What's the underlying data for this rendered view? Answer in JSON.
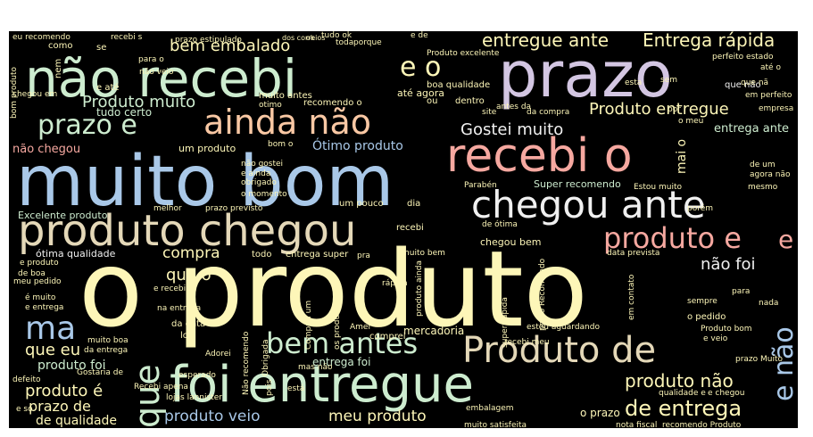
{
  "palette": {
    "background": "#000000",
    "cream": "#fdf6b8",
    "mint": "#cdeccf",
    "blue": "#a9c8e8",
    "peach": "#f9c8a4",
    "salmon": "#f6a8a0",
    "lavender": "#d3c6e2",
    "tan": "#e4d8b8",
    "grey": "#f0f0f0"
  },
  "words": [
    {
      "text": "o produto",
      "color": "cream"
    },
    {
      "text": "muito bom",
      "color": "blue"
    },
    {
      "text": "não recebi",
      "color": "mint"
    },
    {
      "text": "prazo",
      "color": "lavender"
    },
    {
      "text": "foi entregue",
      "color": "mint"
    },
    {
      "text": "produto chegou",
      "color": "tan"
    },
    {
      "text": "recebi o",
      "color": "salmon"
    },
    {
      "text": "chegou ante",
      "color": "grey"
    },
    {
      "text": "ainda não",
      "color": "peach"
    },
    {
      "text": "Produto de",
      "color": "tan"
    },
    {
      "text": "prazo e",
      "color": "mint"
    },
    {
      "text": "bem antes",
      "color": "mint"
    },
    {
      "text": "produto e",
      "color": "salmon"
    },
    {
      "text": "ma",
      "color": "blue"
    },
    {
      "text": "que",
      "color": "mint"
    },
    {
      "text": "e não",
      "color": "blue"
    },
    {
      "text": "e",
      "color": "salmon"
    },
    {
      "text": "e o",
      "color": "cream"
    },
    {
      "text": "de entrega",
      "color": "cream"
    },
    {
      "text": "entregue ante",
      "color": "cream"
    },
    {
      "text": "Entrega rápida",
      "color": "cream"
    },
    {
      "text": "bem embalado",
      "color": "cream"
    },
    {
      "text": "Produto entregue",
      "color": "cream"
    },
    {
      "text": "Produto muito",
      "color": "mint"
    },
    {
      "text": "Gostei muito",
      "color": "grey"
    },
    {
      "text": "produto não",
      "color": "cream"
    },
    {
      "text": "produto é",
      "color": "cream"
    },
    {
      "text": "produto veio",
      "color": "blue"
    },
    {
      "text": "meu produto",
      "color": "cream"
    },
    {
      "text": "compra",
      "color": "cream"
    },
    {
      "text": "que o",
      "color": "cream"
    },
    {
      "text": "não foi",
      "color": "grey"
    },
    {
      "text": "que eu",
      "color": "cream"
    },
    {
      "text": "prazo de",
      "color": "cream"
    },
    {
      "text": "de qualidade",
      "color": "cream"
    },
    {
      "text": "produto foi",
      "color": "mint"
    },
    {
      "text": "Ótimo produto",
      "color": "blue"
    },
    {
      "text": "entrega ante",
      "color": "mint"
    },
    {
      "text": "Excelente produto",
      "color": "mint"
    },
    {
      "text": "ótima qualidade",
      "color": "grey"
    },
    {
      "text": "o prazo",
      "color": "cream"
    },
    {
      "text": "entrega foi",
      "color": "mint"
    },
    {
      "text": "mercadoria",
      "color": "cream"
    },
    {
      "text": "tudo certo",
      "color": "mint"
    },
    {
      "text": "chegou bem",
      "color": "cream"
    },
    {
      "text": "Super recomendo",
      "color": "mint"
    },
    {
      "text": "mai o",
      "color": "cream"
    },
    {
      "text": "até agora",
      "color": "cream"
    },
    {
      "text": "não chegou",
      "color": "salmon"
    },
    {
      "text": "boa qualidade",
      "color": "cream"
    },
    {
      "text": "Estou muito",
      "color": "cream"
    },
    {
      "text": "que não",
      "color": "grey"
    },
    {
      "text": "porém",
      "color": "cream"
    },
    {
      "text": "mesmo",
      "color": "cream"
    },
    {
      "text": "o pedido",
      "color": "cream"
    },
    {
      "text": "sempre",
      "color": "cream"
    },
    {
      "text": "data prevista",
      "color": "cream"
    },
    {
      "text": "Parabén",
      "color": "cream"
    },
    {
      "text": "antes da",
      "color": "cream"
    },
    {
      "text": "dentro",
      "color": "cream"
    },
    {
      "text": "ou",
      "color": "cream"
    },
    {
      "text": "um produto",
      "color": "cream"
    },
    {
      "text": "não gostei",
      "color": "cream"
    },
    {
      "text": "obrigado",
      "color": "cream"
    },
    {
      "text": "o momento",
      "color": "cream"
    },
    {
      "text": "prazo previsto",
      "color": "cream"
    },
    {
      "text": "um pouco",
      "color": "cream"
    },
    {
      "text": "dia",
      "color": "cream"
    },
    {
      "text": "melhor",
      "color": "cream"
    },
    {
      "text": "todo",
      "color": "cream"
    },
    {
      "text": "entrega super",
      "color": "cream"
    },
    {
      "text": "muito bem",
      "color": "cream"
    },
    {
      "text": "pra",
      "color": "cream"
    },
    {
      "text": "de ótima",
      "color": "cream"
    },
    {
      "text": "de boa",
      "color": "cream"
    },
    {
      "text": "meu pedido",
      "color": "cream"
    },
    {
      "text": "é muito",
      "color": "cream"
    },
    {
      "text": "e entrega",
      "color": "cream"
    },
    {
      "text": "e recebi",
      "color": "cream"
    },
    {
      "text": "na entrega",
      "color": "cream"
    },
    {
      "text": "da data",
      "color": "cream"
    },
    {
      "text": "loja",
      "color": "cream"
    },
    {
      "text": "muito boa",
      "color": "cream"
    },
    {
      "text": "da entrega",
      "color": "cream"
    },
    {
      "text": "Adorei",
      "color": "cream"
    },
    {
      "text": "Gostaria de",
      "color": "cream"
    },
    {
      "text": "estou aguardando",
      "color": "cream"
    },
    {
      "text": "recebi meu",
      "color": "cream"
    },
    {
      "text": "Produto bom",
      "color": "cream"
    },
    {
      "text": "e veio",
      "color": "cream"
    },
    {
      "text": "e chegou",
      "color": "cream"
    },
    {
      "text": "qualidade e",
      "color": "cream"
    },
    {
      "text": "nota fiscal",
      "color": "cream"
    },
    {
      "text": "recomendo Produto",
      "color": "cream"
    },
    {
      "text": "muito satisfeita",
      "color": "cream"
    },
    {
      "text": "embalagem",
      "color": "cream"
    },
    {
      "text": "para",
      "color": "cream"
    },
    {
      "text": "nada",
      "color": "cream"
    },
    {
      "text": "bom o",
      "color": "cream"
    },
    {
      "text": "e ainda",
      "color": "cream"
    },
    {
      "text": "site",
      "color": "cream"
    },
    {
      "text": "da compra",
      "color": "cream"
    },
    {
      "text": "recomendo o",
      "color": "cream"
    },
    {
      "text": "otimo",
      "color": "cream"
    },
    {
      "text": "muito antes",
      "color": "cream"
    },
    {
      "text": "chegou em",
      "color": "cream"
    },
    {
      "text": "e até",
      "color": "cream"
    },
    {
      "text": "não veio",
      "color": "cream"
    },
    {
      "text": "para o",
      "color": "cream"
    },
    {
      "text": "como",
      "color": "cream"
    },
    {
      "text": "se",
      "color": "cream"
    },
    {
      "text": "eu recomendo",
      "color": "cream"
    },
    {
      "text": "recebi s",
      "color": "cream"
    },
    {
      "text": "prazo estipulado",
      "color": "cream"
    },
    {
      "text": "tudo ok",
      "color": "cream"
    },
    {
      "text": "e de",
      "color": "cream"
    },
    {
      "text": "Produto excelente",
      "color": "cream"
    },
    {
      "text": "perfeito estado",
      "color": "cream"
    },
    {
      "text": "até o",
      "color": "cream"
    },
    {
      "text": "em perfeito",
      "color": "cream"
    },
    {
      "text": "que nã",
      "color": "cream"
    },
    {
      "text": "sem",
      "color": "cream"
    },
    {
      "text": "esta",
      "color": "cream"
    },
    {
      "text": "o meu",
      "color": "cream"
    },
    {
      "text": "por",
      "color": "cream"
    },
    {
      "text": "empresa",
      "color": "cream"
    },
    {
      "text": "de um",
      "color": "cream"
    },
    {
      "text": "agora não",
      "color": "cream"
    },
    {
      "text": "Obrigada",
      "color": "cream"
    },
    {
      "text": "Comprei um",
      "color": "cream"
    },
    {
      "text": "os produto",
      "color": "cream"
    },
    {
      "text": "Amei",
      "color": "cream"
    },
    {
      "text": "comprei",
      "color": "cream"
    },
    {
      "text": "super rápida",
      "color": "cream"
    },
    {
      "text": "prazo Recomendo",
      "color": "cream"
    },
    {
      "text": "em contato",
      "color": "cream"
    },
    {
      "text": "lojas lannister",
      "color": "cream"
    },
    {
      "text": "Não recomendo",
      "color": "cream"
    },
    {
      "text": "pois",
      "color": "cream"
    },
    {
      "text": "está",
      "color": "cream"
    },
    {
      "text": "defeito",
      "color": "cream"
    },
    {
      "text": "e só",
      "color": "cream"
    },
    {
      "text": "bom produto",
      "color": "cream"
    },
    {
      "text": "nem",
      "color": "cream"
    },
    {
      "text": "e produto",
      "color": "cream"
    },
    {
      "text": "esperado",
      "color": "cream"
    },
    {
      "text": "produto ainda",
      "color": "cream"
    },
    {
      "text": "Recebi apena",
      "color": "cream"
    },
    {
      "text": "mas não",
      "color": "cream"
    },
    {
      "text": "toda",
      "color": "cream"
    },
    {
      "text": "porque",
      "color": "cream"
    },
    {
      "text": "dos correios",
      "color": "cream"
    },
    {
      "text": "ok",
      "color": "cream"
    },
    {
      "text": "prazo Muito",
      "color": "cream"
    },
    {
      "text": "recebi",
      "color": "cream"
    },
    {
      "text": "rápida",
      "color": "cream"
    }
  ]
}
